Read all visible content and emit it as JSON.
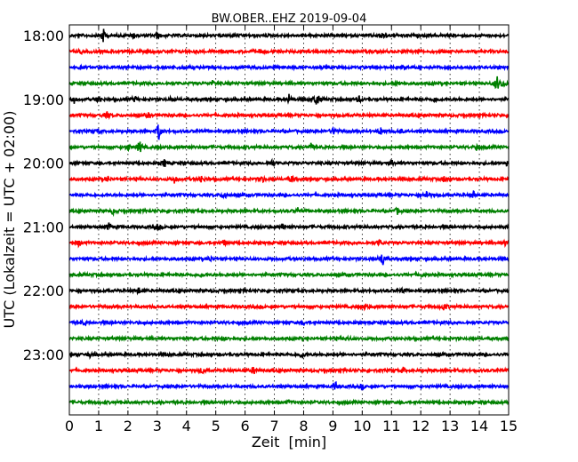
{
  "chart_data": {
    "type": "line",
    "title": "BW.OBER..EHZ 2019-09-04",
    "xlabel": "Zeit  [min]",
    "ylabel": "UTC (Lokalzeit = UTC + 02:00)",
    "xlim": [
      0,
      15
    ],
    "x_ticks": [
      "0",
      "1",
      "2",
      "3",
      "4",
      "5",
      "6",
      "7",
      "8",
      "9",
      "10",
      "11",
      "12",
      "13",
      "14",
      "15"
    ],
    "y_ticks": [
      "18:00",
      "19:00",
      "20:00",
      "21:00",
      "22:00",
      "23:00"
    ],
    "grid": "vertical dotted",
    "trace_colors": [
      "#000000",
      "#ff0000",
      "#0000ff",
      "#008000"
    ],
    "traces": [
      {
        "start": "18:00",
        "events": [
          [
            1.15,
            1.0
          ],
          [
            2.2,
            0.35
          ],
          [
            3.0,
            0.4
          ],
          [
            10.7,
            0.45
          ]
        ]
      },
      {
        "start": "18:15",
        "events": [
          [
            0.4,
            0.2
          ],
          [
            6.5,
            0.2
          ]
        ]
      },
      {
        "start": "18:30",
        "events": [
          [
            3.9,
            0.2
          ],
          [
            11.4,
            0.2
          ]
        ]
      },
      {
        "start": "18:45",
        "events": [
          [
            4.9,
            0.3
          ],
          [
            14.6,
            1.0
          ],
          [
            14.8,
            0.5
          ],
          [
            11.2,
            0.25
          ]
        ]
      },
      {
        "start": "19:00",
        "events": [
          [
            0.15,
            0.55
          ],
          [
            1.0,
            0.5
          ],
          [
            2.25,
            0.4
          ],
          [
            3.5,
            0.35
          ],
          [
            7.5,
            0.6
          ],
          [
            8.45,
            1.0
          ],
          [
            9.9,
            0.4
          ],
          [
            12.5,
            0.35
          ]
        ]
      },
      {
        "start": "19:15",
        "events": [
          [
            1.3,
            0.4
          ],
          [
            2.7,
            0.25
          ]
        ]
      },
      {
        "start": "19:30",
        "events": [
          [
            1.0,
            0.3
          ],
          [
            3.05,
            1.2
          ],
          [
            9.05,
            0.6
          ],
          [
            10.65,
            0.6
          ],
          [
            11.3,
            0.3
          ]
        ]
      },
      {
        "start": "19:45",
        "events": [
          [
            2.0,
            0.45
          ],
          [
            2.4,
            0.9
          ],
          [
            8.25,
            0.5
          ],
          [
            13.9,
            0.4
          ]
        ]
      },
      {
        "start": "20:00",
        "events": [
          [
            3.25,
            0.5
          ],
          [
            6.9,
            0.4
          ],
          [
            11.0,
            0.4
          ],
          [
            14.95,
            0.6
          ]
        ]
      },
      {
        "start": "20:15",
        "events": [
          [
            1.3,
            0.4
          ],
          [
            3.6,
            0.55
          ],
          [
            4.5,
            0.45
          ],
          [
            6.6,
            0.35
          ],
          [
            7.6,
            0.4
          ],
          [
            12.8,
            0.4
          ]
        ]
      },
      {
        "start": "20:30",
        "events": [
          [
            5.3,
            0.55
          ],
          [
            12.2,
            0.55
          ],
          [
            13.8,
            0.45
          ]
        ]
      },
      {
        "start": "20:45",
        "events": [
          [
            1.5,
            0.4
          ],
          [
            7.8,
            0.35
          ],
          [
            11.2,
            0.4
          ]
        ]
      },
      {
        "start": "21:00",
        "events": [
          [
            1.35,
            0.5
          ],
          [
            3.0,
            0.3
          ],
          [
            7.3,
            0.3
          ]
        ]
      },
      {
        "start": "21:15",
        "events": [
          [
            0.3,
            0.4
          ],
          [
            5.3,
            0.35
          ],
          [
            10.6,
            0.3
          ],
          [
            14.9,
            0.3
          ]
        ]
      },
      {
        "start": "21:30",
        "events": [
          [
            4.8,
            0.35
          ],
          [
            10.7,
            1.0
          ]
        ]
      },
      {
        "start": "21:45",
        "events": [
          [
            4.5,
            0.2
          ],
          [
            12.0,
            0.2
          ]
        ]
      },
      {
        "start": "22:00",
        "events": [
          [
            2.35,
            0.5
          ],
          [
            11.4,
            0.25
          ]
        ]
      },
      {
        "start": "22:15",
        "events": [
          [
            10.1,
            0.35
          ],
          [
            12.8,
            0.5
          ]
        ]
      },
      {
        "start": "22:30",
        "events": [
          [
            0.5,
            0.3
          ],
          [
            8.0,
            0.25
          ]
        ]
      },
      {
        "start": "22:45",
        "events": [
          [
            5.3,
            0.2
          ],
          [
            9.5,
            0.2
          ]
        ]
      },
      {
        "start": "23:00",
        "events": [
          [
            0.7,
            0.35
          ],
          [
            7.95,
            0.55
          ]
        ]
      },
      {
        "start": "23:15",
        "events": [
          [
            4.55,
            0.4
          ],
          [
            6.3,
            0.45
          ],
          [
            11.4,
            0.3
          ]
        ]
      },
      {
        "start": "23:30",
        "events": [
          [
            9.1,
            0.5
          ],
          [
            10.0,
            0.3
          ]
        ]
      },
      {
        "start": "23:45",
        "events": [
          [
            7.5,
            0.2
          ]
        ]
      }
    ]
  }
}
